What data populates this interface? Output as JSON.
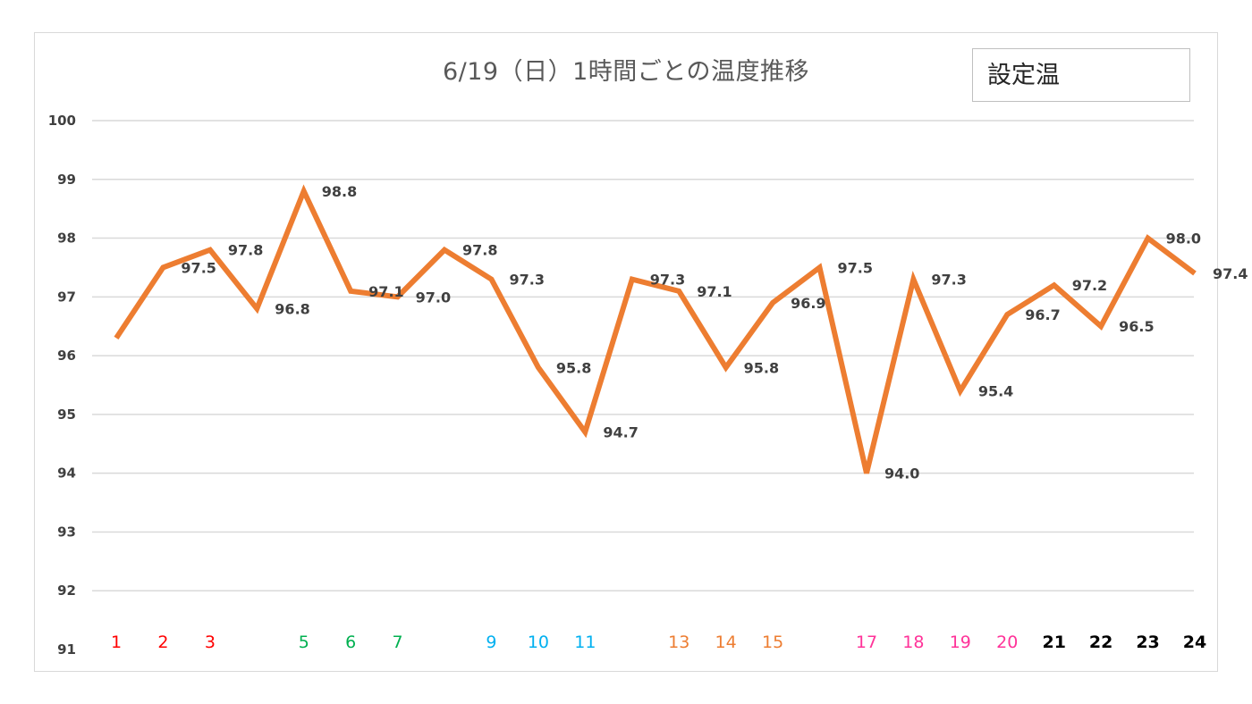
{
  "chart_data": {
    "type": "line",
    "title": "6/19（日）1時間ごとの温度推移",
    "legend": "設定温",
    "ylim": [
      91,
      100
    ],
    "yticks": [
      91,
      92,
      93,
      94,
      95,
      96,
      97,
      98,
      99,
      100
    ],
    "x": [
      1,
      2,
      3,
      4,
      5,
      6,
      7,
      8,
      9,
      10,
      11,
      12,
      13,
      14,
      15,
      16,
      17,
      18,
      19,
      20,
      21,
      22,
      23,
      24
    ],
    "xtick_labels": [
      "1",
      "2",
      "3",
      "",
      "5",
      "6",
      "7",
      "",
      "9",
      "10",
      "11",
      "",
      "13",
      "14",
      "15",
      "",
      "17",
      "18",
      "19",
      "20",
      "21",
      "22",
      "23",
      "24"
    ],
    "xtick_colors": [
      "#ff0000",
      "#ff0000",
      "#ff0000",
      "",
      "#00b050",
      "#00b050",
      "#00b050",
      "",
      "#00b0f0",
      "#00b0f0",
      "#00b0f0",
      "",
      "#ed7d31",
      "#ed7d31",
      "#ed7d31",
      "",
      "#ff3399",
      "#ff3399",
      "#ff3399",
      "#ff3399",
      "#000000",
      "#000000",
      "#000000",
      "#000000"
    ],
    "series": [
      {
        "color": "#ed7d31",
        "values": [
          96.3,
          97.5,
          97.8,
          96.8,
          98.8,
          97.1,
          97.0,
          97.8,
          97.3,
          95.8,
          94.7,
          97.3,
          97.1,
          95.8,
          96.9,
          97.5,
          94.0,
          97.3,
          95.4,
          96.7,
          97.2,
          96.5,
          98.0,
          97.4
        ],
        "labels": [
          "",
          "97.5",
          "97.8",
          "96.8",
          "98.8",
          "97.1",
          "97.0",
          "97.8",
          "97.3",
          "95.8",
          "94.7",
          "97.3",
          "97.1",
          "95.8",
          "96.9",
          "97.5",
          "94.0",
          "97.3",
          "95.4",
          "96.7",
          "97.2",
          "96.5",
          "98.0",
          "97.4"
        ]
      }
    ],
    "grid": true
  }
}
